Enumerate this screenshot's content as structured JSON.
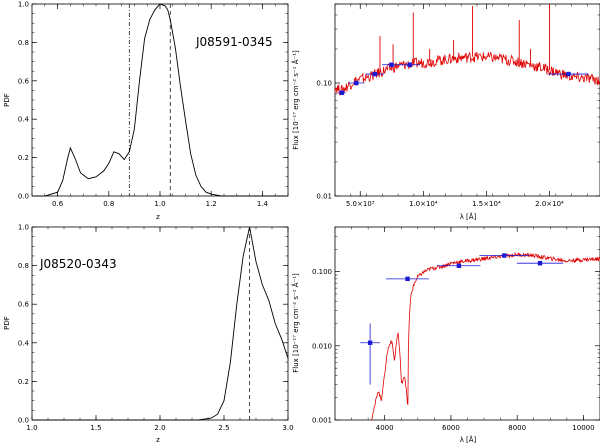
{
  "chart_data": [
    {
      "id": "pdf1",
      "type": "line",
      "object": "J08591-0345",
      "xlabel": "z",
      "ylabel": "PDF",
      "xlim": [
        0.5,
        1.5
      ],
      "ylim": [
        0,
        1.0
      ],
      "xticks": [
        0.6,
        0.8,
        1.0,
        1.2,
        1.4
      ],
      "xticklabels": [
        "0.6",
        "0.8",
        "1.0",
        "1.2",
        "1.4"
      ],
      "yticks": [
        0,
        0.2,
        0.4,
        0.6,
        0.8,
        1.0
      ],
      "yticklabels": [
        "0.0",
        "0.2",
        "0.4",
        "0.6",
        "0.8",
        "1.0"
      ],
      "vlines": [
        {
          "x": 0.88,
          "style": "dashdot"
        },
        {
          "x": 1.04,
          "style": "dashed"
        }
      ],
      "series": [
        {
          "name": "PDF",
          "x": [
            0.5,
            0.55,
            0.6,
            0.62,
            0.64,
            0.65,
            0.67,
            0.69,
            0.72,
            0.75,
            0.78,
            0.8,
            0.82,
            0.84,
            0.86,
            0.88,
            0.9,
            0.92,
            0.94,
            0.96,
            0.98,
            1.0,
            1.02,
            1.03,
            1.04,
            1.06,
            1.08,
            1.1,
            1.12,
            1.14,
            1.16,
            1.18,
            1.2,
            1.24,
            1.3,
            1.4,
            1.5
          ],
          "values": [
            0.0,
            0.0,
            0.02,
            0.08,
            0.2,
            0.25,
            0.19,
            0.12,
            0.09,
            0.1,
            0.13,
            0.17,
            0.23,
            0.22,
            0.19,
            0.23,
            0.35,
            0.6,
            0.82,
            0.92,
            0.97,
            1.0,
            0.99,
            0.97,
            0.92,
            0.77,
            0.57,
            0.39,
            0.22,
            0.11,
            0.05,
            0.02,
            0.01,
            0.0,
            0.0,
            0.0,
            0.0
          ]
        }
      ]
    },
    {
      "id": "sed1",
      "type": "line",
      "xlabel": "λ [Å]",
      "ylabel": "Flux [10⁻¹⁷ erg cm⁻² s⁻¹ Å⁻¹]",
      "xscale": "linear",
      "yscale": "log",
      "xlim": [
        3000,
        24000
      ],
      "ylim": [
        0.01,
        0.5
      ],
      "xticks": [
        5000,
        10000,
        15000,
        20000
      ],
      "xticklabels": [
        "5.0×10³",
        "1.0×10⁴",
        "1.5×10⁴",
        "2.0×10⁴"
      ],
      "yticks": [
        0.01,
        0.1
      ],
      "yticklabels": [
        "0.01",
        "0.10"
      ],
      "series": [
        {
          "name": "template spectrum",
          "color": "#e00000",
          "x": [
            3000,
            3500,
            4000,
            4500,
            5000,
            5500,
            6000,
            7000,
            8000,
            9000,
            10000,
            11000,
            12000,
            13000,
            14000,
            15000,
            16000,
            17000,
            18000,
            19000,
            20000,
            21000,
            22000,
            23000,
            24000
          ],
          "values": [
            0.092,
            0.086,
            0.094,
            0.104,
            0.108,
            0.112,
            0.117,
            0.13,
            0.142,
            0.148,
            0.152,
            0.158,
            0.163,
            0.168,
            0.171,
            0.17,
            0.165,
            0.158,
            0.15,
            0.14,
            0.13,
            0.12,
            0.112,
            0.11,
            0.106
          ],
          "emission_lines": [
            {
              "x": 6563,
              "peak": 0.26
            },
            {
              "x": 7600,
              "peak": 0.22
            },
            {
              "x": 9200,
              "peak": 0.42
            },
            {
              "x": 10500,
              "peak": 0.2
            },
            {
              "x": 12400,
              "peak": 0.24
            },
            {
              "x": 13900,
              "peak": 0.48
            },
            {
              "x": 17600,
              "peak": 0.36
            },
            {
              "x": 18500,
              "peak": 0.2
            },
            {
              "x": 20000,
              "peak": 0.5
            }
          ]
        },
        {
          "name": "photometry",
          "color": "#1a1ad6",
          "points": [
            {
              "x": 3550,
              "y": 0.082,
              "xerr": 300
            },
            {
              "x": 4690,
              "y": 0.1,
              "xerr": 650
            },
            {
              "x": 6160,
              "y": 0.12,
              "xerr": 700
            },
            {
              "x": 7480,
              "y": 0.145,
              "xerr": 750
            },
            {
              "x": 8920,
              "y": 0.145,
              "xerr": 800
            },
            {
              "x": 21500,
              "y": 0.12,
              "xerr": 1600
            }
          ]
        }
      ]
    },
    {
      "id": "pdf2",
      "type": "line",
      "object": "J08520-0343",
      "xlabel": "z",
      "ylabel": "PDF",
      "xlim": [
        1.0,
        3.0
      ],
      "ylim": [
        0,
        1.0
      ],
      "xticks": [
        1.0,
        1.5,
        2.0,
        2.5,
        3.0
      ],
      "xticklabels": [
        "1.0",
        "1.5",
        "2.0",
        "2.5",
        "3.0"
      ],
      "yticks": [
        0,
        0.2,
        0.4,
        0.6,
        0.8,
        1.0
      ],
      "yticklabels": [
        "0.0",
        "0.2",
        "0.4",
        "0.6",
        "0.8",
        "1.0"
      ],
      "vlines": [
        {
          "x": 2.7,
          "style": "dashed"
        }
      ],
      "series": [
        {
          "name": "PDF",
          "x": [
            1.0,
            2.0,
            2.3,
            2.4,
            2.45,
            2.5,
            2.55,
            2.6,
            2.65,
            2.7,
            2.75,
            2.8,
            2.85,
            2.9,
            2.95,
            3.0
          ],
          "values": [
            0.0,
            0.0,
            0.0,
            0.01,
            0.03,
            0.1,
            0.3,
            0.6,
            0.85,
            1.0,
            0.82,
            0.7,
            0.62,
            0.5,
            0.42,
            0.32
          ]
        }
      ]
    },
    {
      "id": "sed2",
      "type": "line",
      "xlabel": "λ [Å]",
      "ylabel": "Flux [10⁻¹⁷ erg cm⁻² s⁻¹ Å⁻¹]",
      "xscale": "linear",
      "yscale": "log",
      "xlim": [
        2500,
        10500
      ],
      "ylim": [
        0.001,
        0.4
      ],
      "xticks": [
        4000,
        6000,
        8000,
        10000
      ],
      "xticklabels": [
        "4000",
        "6000",
        "8000",
        "10000"
      ],
      "yticks": [
        0.001,
        0.01,
        0.1
      ],
      "yticklabels": [
        "0.001",
        "0.010",
        "0.100"
      ],
      "series": [
        {
          "name": "template spectrum",
          "color": "#e00000",
          "x": [
            3600,
            3700,
            3800,
            3900,
            4000,
            4100,
            4200,
            4300,
            4400,
            4500,
            4600,
            4700,
            4800,
            4900,
            5000,
            5200,
            5400,
            5600,
            5800,
            6000,
            6500,
            7000,
            7500,
            8000,
            8500,
            9000,
            9500,
            10000,
            10500
          ],
          "values": [
            0.001,
            0.0015,
            0.0025,
            0.0018,
            0.004,
            0.009,
            0.012,
            0.006,
            0.015,
            0.003,
            0.004,
            0.0012,
            0.05,
            0.07,
            0.085,
            0.1,
            0.11,
            0.115,
            0.12,
            0.13,
            0.14,
            0.15,
            0.16,
            0.17,
            0.165,
            0.15,
            0.14,
            0.145,
            0.15
          ]
        },
        {
          "name": "photometry",
          "color": "#1a1ad6",
          "points": [
            {
              "x": 3560,
              "y": 0.011,
              "xerr": 300,
              "ylo": 0.003,
              "yhi": 0.02
            },
            {
              "x": 4690,
              "y": 0.08,
              "xerr": 650
            },
            {
              "x": 6240,
              "y": 0.12,
              "xerr": 650
            },
            {
              "x": 7610,
              "y": 0.165,
              "xerr": 750
            },
            {
              "x": 8690,
              "y": 0.13,
              "xerr": 700
            }
          ]
        }
      ]
    }
  ]
}
